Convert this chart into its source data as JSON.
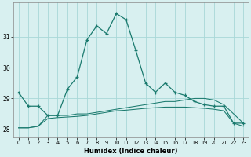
{
  "x": [
    0,
    1,
    2,
    3,
    4,
    5,
    6,
    7,
    8,
    9,
    10,
    11,
    12,
    13,
    14,
    15,
    16,
    17,
    18,
    19,
    20,
    21,
    22,
    23
  ],
  "main_line": [
    29.2,
    28.75,
    28.75,
    28.45,
    28.45,
    29.3,
    29.7,
    30.9,
    31.35,
    31.1,
    31.75,
    31.55,
    30.55,
    29.5,
    29.2,
    29.5,
    29.2,
    29.1,
    28.9,
    28.8,
    28.75,
    28.75,
    28.2,
    28.2
  ],
  "upper_line": [
    28.05,
    28.05,
    28.1,
    28.45,
    28.45,
    28.45,
    28.5,
    28.5,
    28.55,
    28.6,
    28.65,
    28.7,
    28.75,
    28.8,
    28.85,
    28.9,
    28.9,
    28.95,
    29.0,
    29.0,
    28.95,
    28.8,
    28.5,
    28.2
  ],
  "lower_line": [
    28.05,
    28.05,
    28.1,
    28.35,
    28.38,
    28.4,
    28.42,
    28.45,
    28.5,
    28.55,
    28.6,
    28.62,
    28.65,
    28.68,
    28.7,
    28.72,
    28.72,
    28.72,
    28.7,
    28.68,
    28.65,
    28.6,
    28.2,
    28.1
  ],
  "line_color": "#1a7a6e",
  "bg_color": "#d8f0f0",
  "grid_color": "#a8d8d8",
  "ylabel_ticks": [
    28,
    29,
    30,
    31
  ],
  "xlabel": "Humidex (Indice chaleur)",
  "ylim": [
    27.75,
    32.1
  ],
  "xlim": [
    -0.5,
    23.5
  ]
}
